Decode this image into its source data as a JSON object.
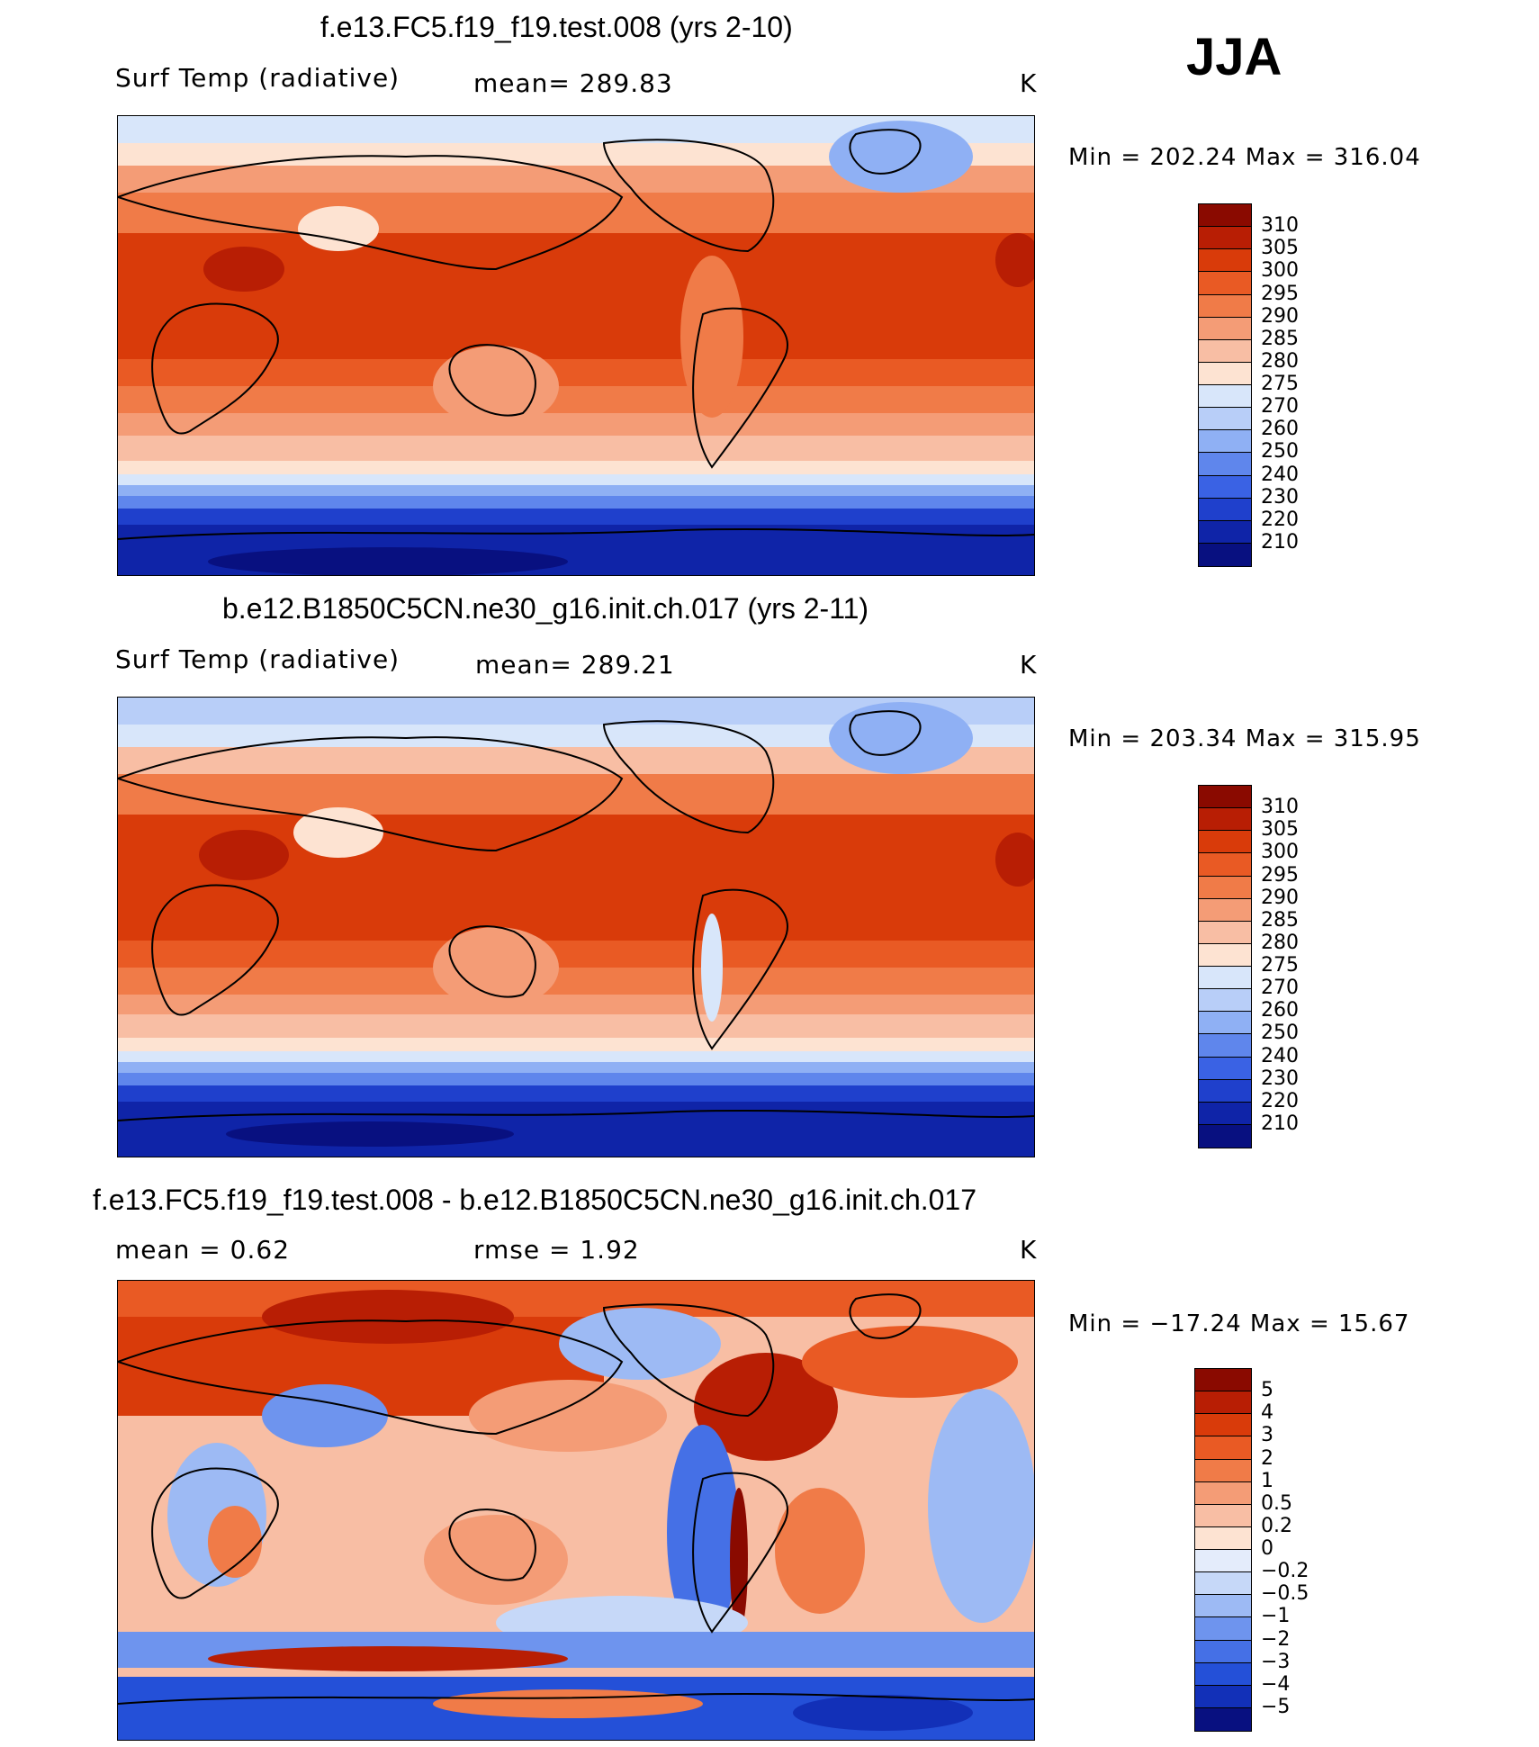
{
  "season": "JJA",
  "panels": [
    {
      "title": "f.e13.FC5.f19_f19.test.008 (yrs 2-10)",
      "variable": "Surf Temp (radiative)",
      "stat1": "mean=  289.83",
      "stat2": "",
      "units": "K",
      "minmax": "Min  =  202.24  Max  =  316.04",
      "palette": "abs",
      "levels": [
        "310",
        "305",
        "300",
        "295",
        "290",
        "285",
        "280",
        "275",
        "270",
        "260",
        "250",
        "240",
        "230",
        "220",
        "210"
      ]
    },
    {
      "title": "b.e12.B1850C5CN.ne30_g16.init.ch.017 (yrs 2-11)",
      "variable": "Surf Temp (radiative)",
      "stat1": "mean=  289.21",
      "stat2": "",
      "units": "K",
      "minmax": "Min  =  203.34  Max  =  315.95",
      "palette": "abs",
      "levels": [
        "310",
        "305",
        "300",
        "295",
        "290",
        "285",
        "280",
        "275",
        "270",
        "260",
        "250",
        "240",
        "230",
        "220",
        "210"
      ]
    },
    {
      "title": "f.e13.FC5.f19_f19.test.008 - b.e12.B1850C5CN.ne30_g16.init.ch.017",
      "variable": "mean  =       0.62",
      "stat1": "rmse  =      1.92",
      "stat2": "",
      "units": "K",
      "minmax": "Min  =  −17.24  Max  =    15.67",
      "palette": "diff",
      "levels": [
        "5",
        "4",
        "3",
        "2",
        "1",
        "0.5",
        "0.2",
        "0",
        "−0.2",
        "−0.5",
        "−1",
        "−2",
        "−3",
        "−4",
        "−5"
      ]
    }
  ],
  "colors": {
    "abs": [
      "#8a0a00",
      "#b81e04",
      "#d93b0a",
      "#e95a24",
      "#f07b48",
      "#f49c76",
      "#f8bea4",
      "#fde3d2",
      "#d8e6fa",
      "#b8cef8",
      "#8fb0f4",
      "#5f86ec",
      "#3a62e4",
      "#1f40cc",
      "#0f24a8",
      "#081080"
    ],
    "diff": [
      "#8a0a00",
      "#b81e04",
      "#d93b0a",
      "#e95a24",
      "#f07b48",
      "#f49c76",
      "#f8bea4",
      "#fde3d2",
      "#e4ecfb",
      "#c6d8f8",
      "#9dbaf4",
      "#6e94ee",
      "#4570e6",
      "#2450d8",
      "#1230b8",
      "#081080"
    ]
  }
}
